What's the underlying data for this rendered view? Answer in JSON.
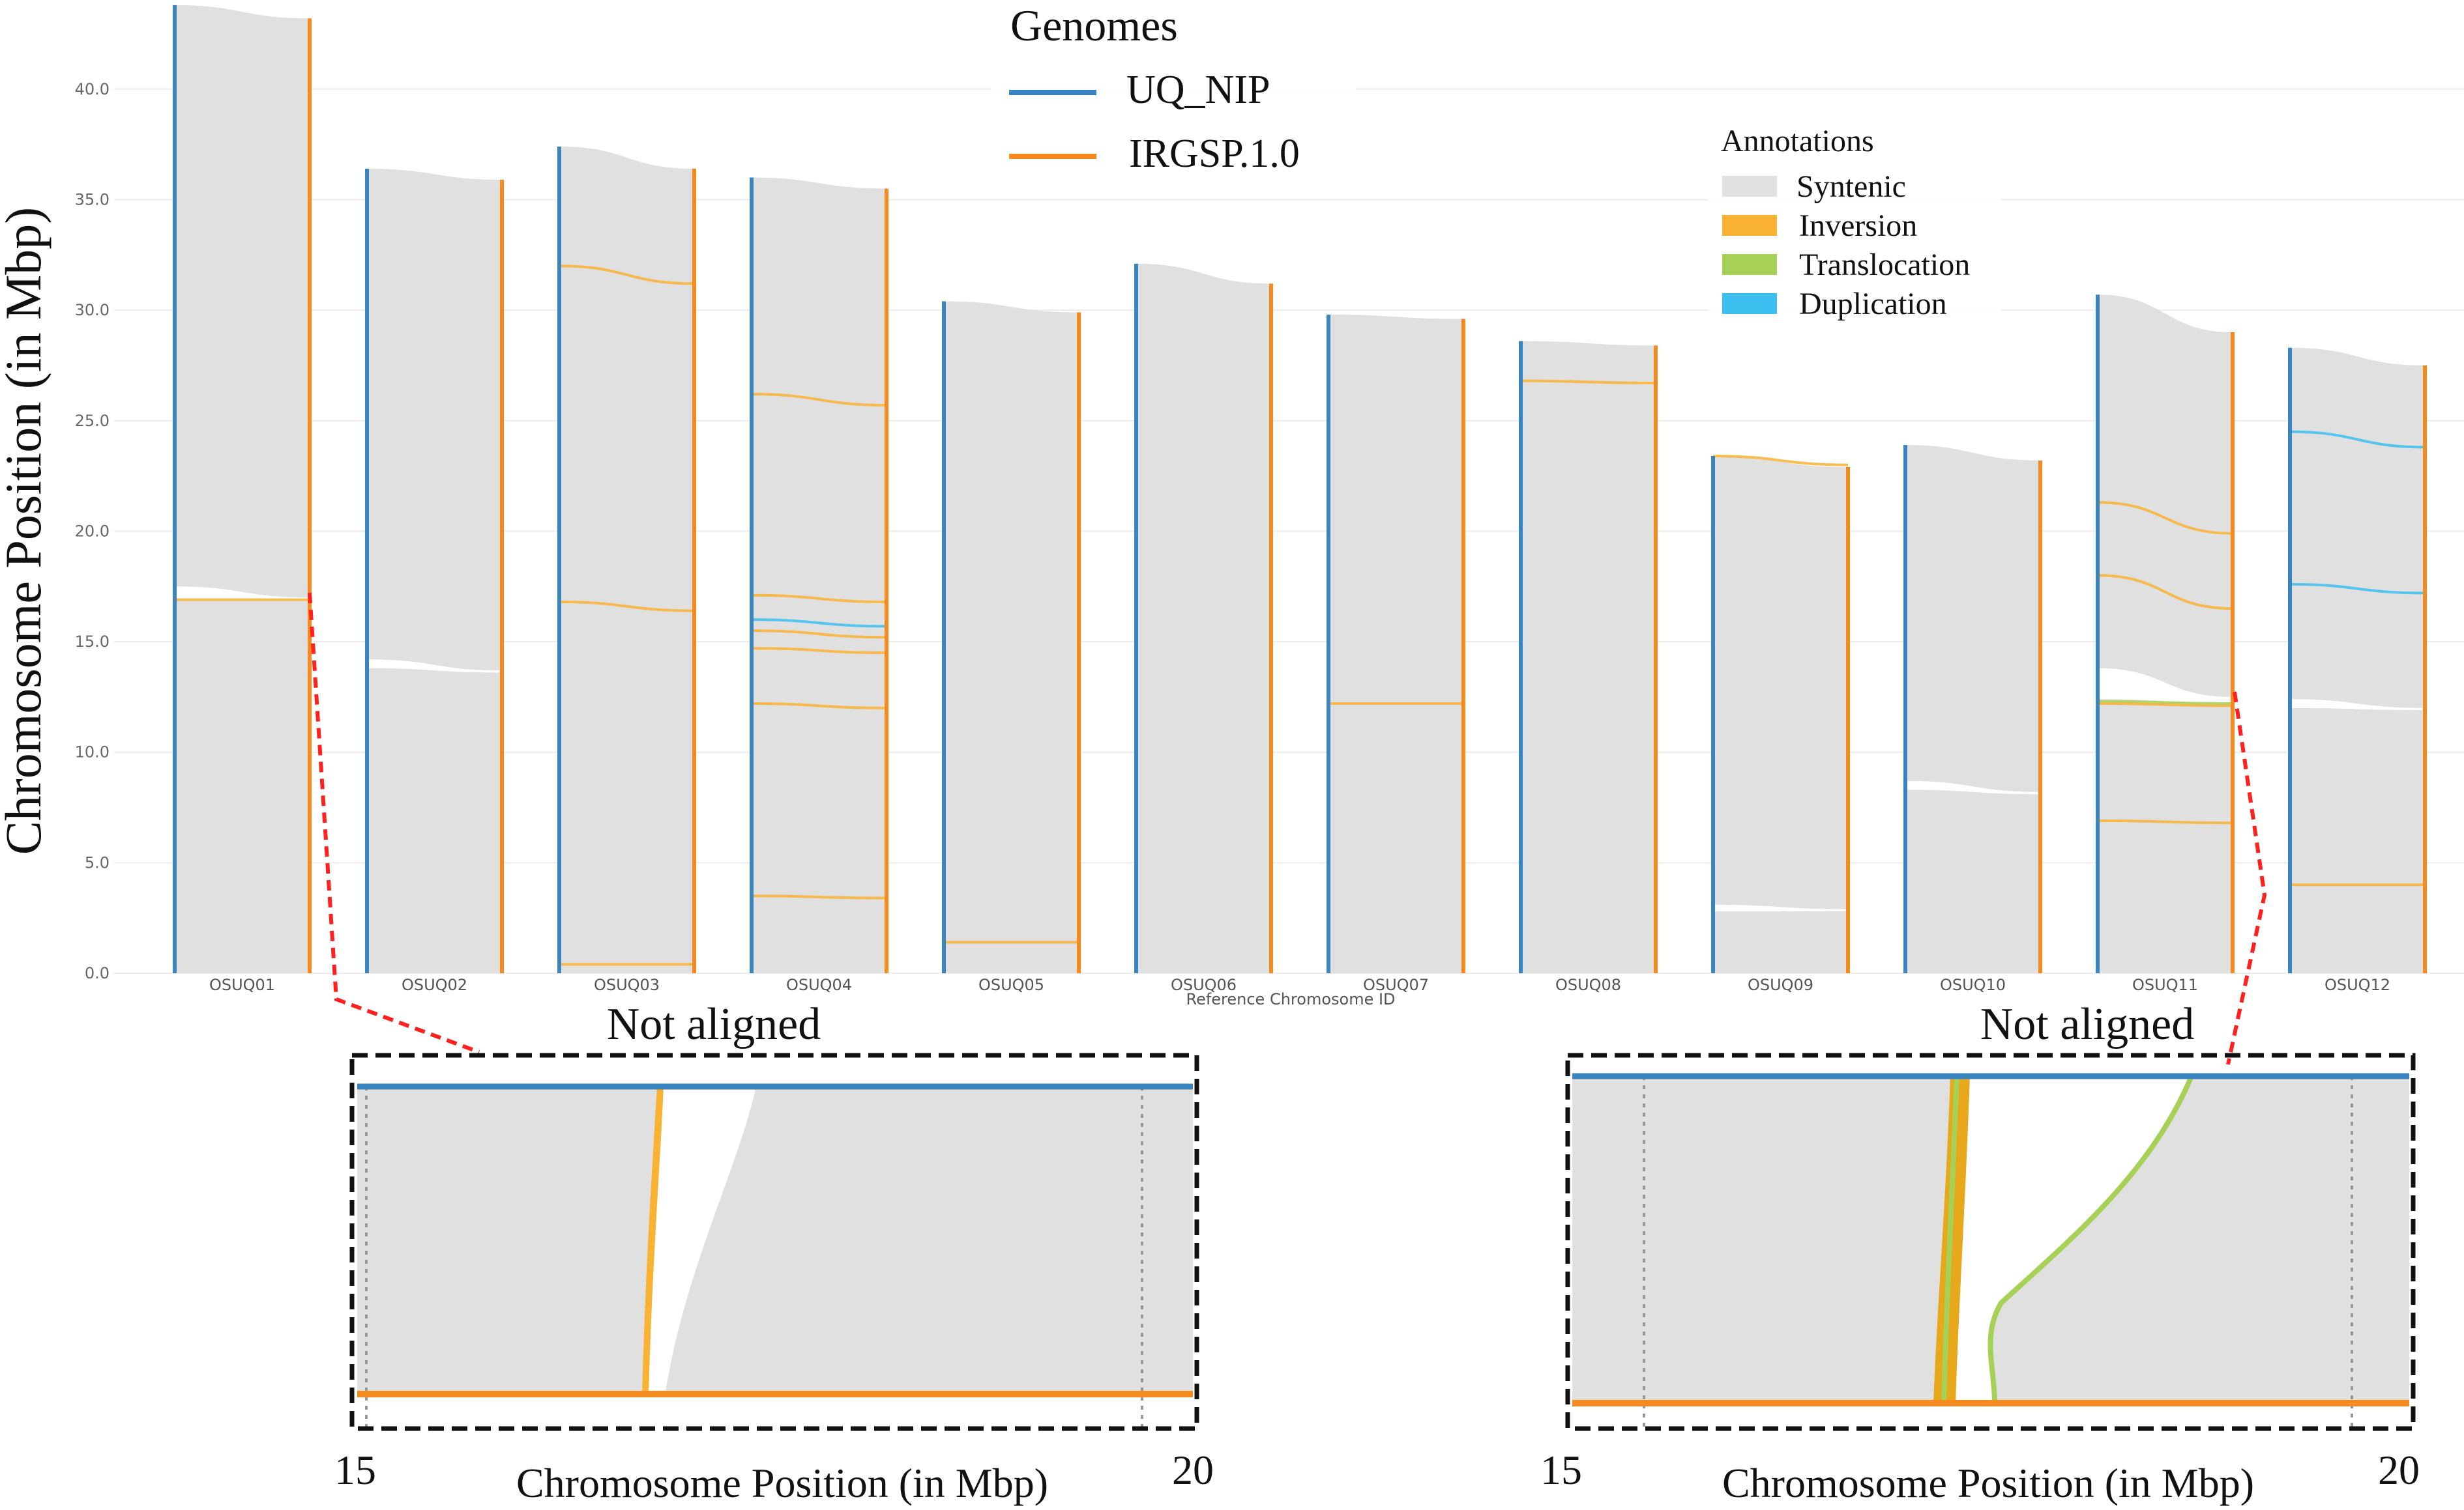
{
  "chart_data": {
    "type": "synteny",
    "ylabel": "Chromosome Position (in Mbp)",
    "xlabel": "Reference Chromosome ID",
    "ylim": [
      0,
      44
    ],
    "yticks": [
      "0.0",
      "5.0",
      "10.0",
      "15.0",
      "20.0",
      "25.0",
      "30.0",
      "35.0",
      "40.0"
    ],
    "grid": true,
    "genomes_legend": {
      "title": "Genomes",
      "items": [
        {
          "name": "UQ_NIP",
          "color": "#3a85c0"
        },
        {
          "name": "IRGSP.1.0",
          "color": "#f58a1f"
        }
      ]
    },
    "annotations_legend": {
      "title": "Annotations",
      "items": [
        {
          "name": "Syntenic",
          "color": "#e0e0e0"
        },
        {
          "name": "Inversion",
          "color": "#f9b233"
        },
        {
          "name": "Translocation",
          "color": "#a6d156"
        },
        {
          "name": "Duplication",
          "color": "#3cbfee"
        }
      ]
    },
    "chromosomes": [
      {
        "id": "OSUQ01",
        "query_len": 43.8,
        "ref_len": 43.2,
        "gaps": [
          [
            16.9,
            17.5,
            16.9,
            17.0
          ]
        ],
        "features": [
          [
            "Inversion",
            16.9,
            16.9
          ]
        ]
      },
      {
        "id": "OSUQ02",
        "query_len": 36.4,
        "ref_len": 35.9,
        "gaps": [
          [
            13.8,
            14.2,
            13.6,
            13.7
          ]
        ],
        "features": []
      },
      {
        "id": "OSUQ03",
        "query_len": 37.4,
        "ref_len": 36.4,
        "gaps": [],
        "features": [
          [
            "Inversion",
            32.0,
            31.2
          ],
          [
            "Inversion",
            16.8,
            16.4
          ],
          [
            "Inversion",
            0.4,
            0.4
          ]
        ]
      },
      {
        "id": "OSUQ04",
        "query_len": 36.0,
        "ref_len": 35.5,
        "gaps": [],
        "features": [
          [
            "Inversion",
            26.2,
            25.7
          ],
          [
            "Inversion",
            17.1,
            16.8
          ],
          [
            "Duplication",
            16.0,
            15.7
          ],
          [
            "Inversion",
            15.5,
            15.2
          ],
          [
            "Inversion",
            14.7,
            14.5
          ],
          [
            "Inversion",
            12.2,
            12.0
          ],
          [
            "Inversion",
            3.5,
            3.4
          ]
        ]
      },
      {
        "id": "OSUQ05",
        "query_len": 30.4,
        "ref_len": 29.9,
        "gaps": [],
        "features": [
          [
            "Inversion",
            1.4,
            1.4
          ]
        ]
      },
      {
        "id": "OSUQ06",
        "query_len": 32.1,
        "ref_len": 31.2,
        "gaps": [],
        "features": []
      },
      {
        "id": "OSUQ07",
        "query_len": 29.8,
        "ref_len": 29.6,
        "gaps": [],
        "features": [
          [
            "Inversion",
            12.2,
            12.2
          ]
        ]
      },
      {
        "id": "OSUQ08",
        "query_len": 28.6,
        "ref_len": 28.4,
        "gaps": [],
        "features": [
          [
            "Inversion",
            26.8,
            26.7
          ]
        ]
      },
      {
        "id": "OSUQ09",
        "query_len": 23.4,
        "ref_len": 22.9,
        "gaps": [
          [
            2.8,
            3.1,
            2.8,
            2.9
          ]
        ],
        "features": [
          [
            "Inversion",
            23.4,
            23.0
          ]
        ]
      },
      {
        "id": "OSUQ10",
        "query_len": 23.9,
        "ref_len": 23.2,
        "gaps": [
          [
            8.3,
            8.7,
            8.1,
            8.2
          ]
        ],
        "features": []
      },
      {
        "id": "OSUQ11",
        "query_len": 30.7,
        "ref_len": 29.0,
        "gaps": [
          [
            12.4,
            13.8,
            12.2,
            12.5
          ]
        ],
        "features": [
          [
            "Inversion",
            21.3,
            19.9
          ],
          [
            "Inversion",
            18.0,
            16.5
          ],
          [
            "Translocation",
            12.3,
            12.2
          ],
          [
            "Inversion",
            12.2,
            12.1
          ],
          [
            "Inversion",
            6.9,
            6.8
          ]
        ]
      },
      {
        "id": "OSUQ12",
        "query_len": 28.3,
        "ref_len": 27.5,
        "gaps": [
          [
            12.0,
            12.4,
            11.9,
            12.0
          ]
        ],
        "features": [
          [
            "Duplication",
            24.5,
            23.8
          ],
          [
            "Duplication",
            17.6,
            17.2
          ],
          [
            "Inversion",
            4.0,
            4.0
          ]
        ]
      }
    ],
    "insets": [
      {
        "label": "Not aligned",
        "xmin": "15",
        "xmax": "20",
        "xlabel": "Chromosome Position (in Mbp)"
      },
      {
        "label": "Not aligned",
        "xmin": "15",
        "xmax": "20",
        "xlabel": "Chromosome Position (in Mbp)"
      }
    ]
  }
}
